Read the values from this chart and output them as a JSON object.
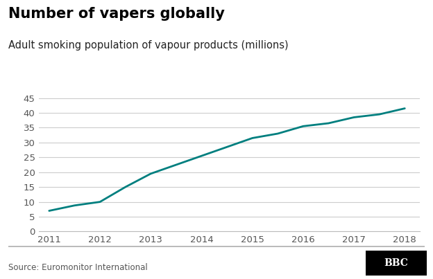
{
  "title": "Number of vapers globally",
  "subtitle": "Adult smoking population of vapour products (millions)",
  "source": "Source: Euromonitor International",
  "bbc_label": "BBC",
  "x": [
    2011,
    2011.5,
    2012,
    2012.5,
    2013,
    2013.5,
    2014,
    2014.5,
    2015,
    2015.5,
    2016,
    2016.5,
    2017,
    2017.5,
    2018
  ],
  "y": [
    7.0,
    8.8,
    10.0,
    15.0,
    19.5,
    22.5,
    25.5,
    28.5,
    31.5,
    33.0,
    35.5,
    36.5,
    38.5,
    39.5,
    41.5
  ],
  "line_color": "#007f7f",
  "line_width": 2.0,
  "bg_color": "#ffffff",
  "plot_bg_color": "#ffffff",
  "grid_color": "#cccccc",
  "yticks": [
    0,
    5,
    10,
    15,
    20,
    25,
    30,
    35,
    40,
    45
  ],
  "xticks": [
    2011,
    2012,
    2013,
    2014,
    2015,
    2016,
    2017,
    2018
  ],
  "ylim": [
    0,
    47
  ],
  "xlim": [
    2010.8,
    2018.3
  ],
  "title_fontsize": 15,
  "subtitle_fontsize": 10.5,
  "tick_fontsize": 9.5,
  "source_fontsize": 8.5,
  "tick_color": "#555555",
  "spine_color": "#bbbbbb"
}
